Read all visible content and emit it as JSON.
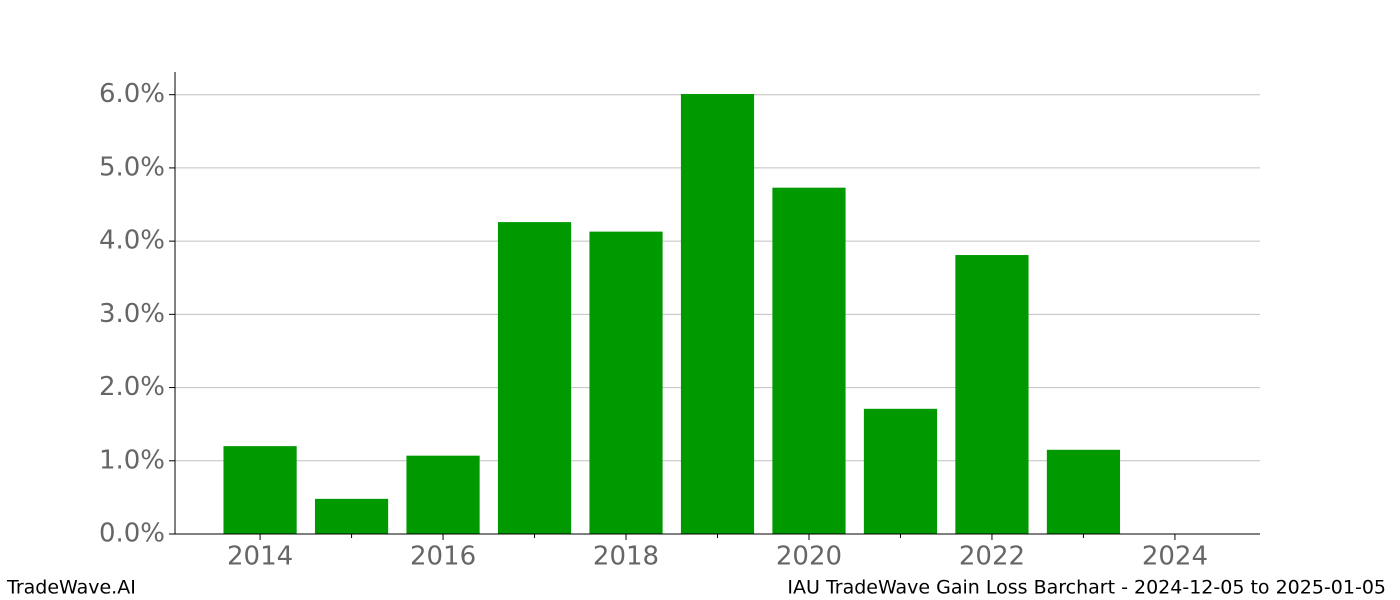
{
  "chart_data": {
    "type": "bar",
    "title": "IAU TradeWave Gain Loss Barchart - 2024-12-05 to 2025-01-05",
    "watermark": "TradeWave.AI",
    "x": [
      2014,
      2015,
      2016,
      2017,
      2018,
      2019,
      2020,
      2021,
      2022,
      2023
    ],
    "values": [
      1.2,
      0.48,
      1.07,
      4.26,
      4.13,
      6.01,
      4.73,
      1.71,
      3.81,
      1.15
    ],
    "color": "#009900",
    "xlim": [
      2013.07,
      2024.93
    ],
    "xticks": [
      2014,
      2016,
      2018,
      2020,
      2022,
      2024
    ],
    "xminorticks": [
      2015,
      2017,
      2019,
      2021,
      2023
    ],
    "ylim": [
      0,
      6.31
    ],
    "yticks": [
      {
        "value": 0,
        "label": "0.0%"
      },
      {
        "value": 1,
        "label": "1.0%"
      },
      {
        "value": 2,
        "label": "2.0%"
      },
      {
        "value": 3,
        "label": "3.0%"
      },
      {
        "value": 4,
        "label": "4.0%"
      },
      {
        "value": 5,
        "label": "5.0%"
      },
      {
        "value": 6,
        "label": "6.0%"
      }
    ],
    "grid": true
  }
}
